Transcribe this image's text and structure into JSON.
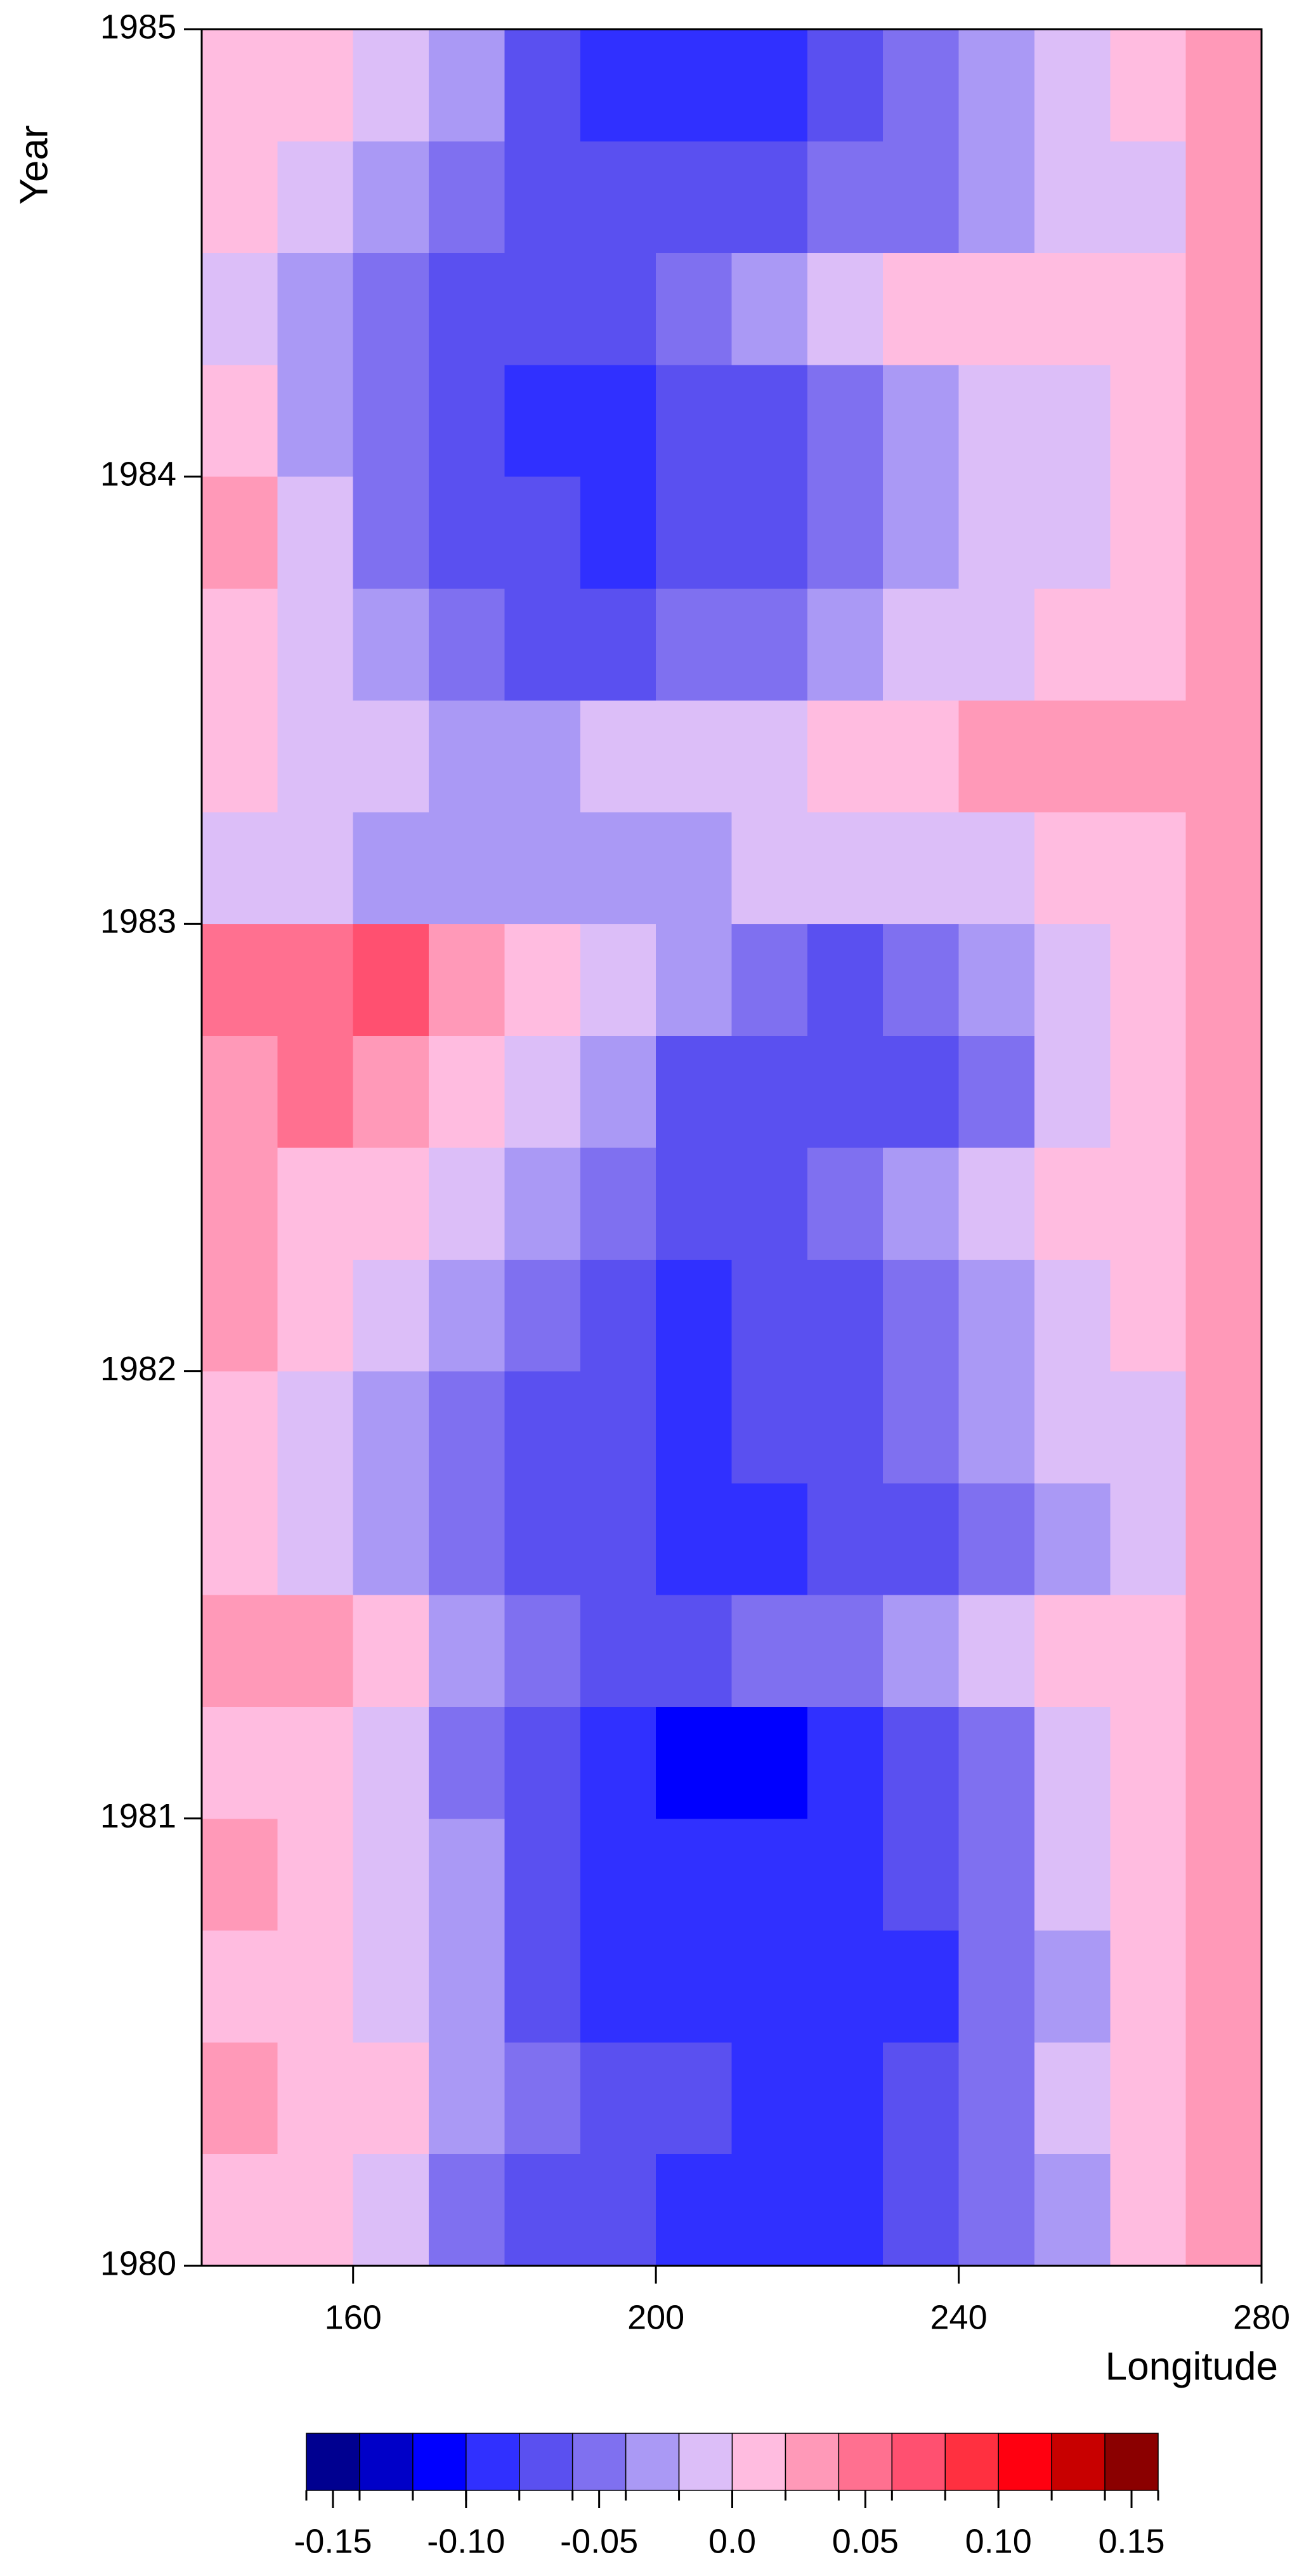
{
  "chart_data": {
    "type": "heatmap",
    "xlabel": "Longitude",
    "ylabel": "Year",
    "x": [
      145,
      155,
      165,
      175,
      185,
      195,
      205,
      215,
      225,
      235,
      245,
      255,
      265,
      275
    ],
    "y": [
      1980.125,
      1980.375,
      1980.625,
      1980.875,
      1981.125,
      1981.375,
      1981.625,
      1981.875,
      1982.125,
      1982.375,
      1982.625,
      1982.875,
      1983.125,
      1983.375,
      1983.625,
      1983.875,
      1984.125,
      1984.375,
      1984.625,
      1984.875
    ],
    "values": [
      [
        0.01,
        0.01,
        -0.02,
        -0.05,
        -0.07,
        -0.08,
        -0.09,
        -0.1,
        -0.09,
        -0.08,
        -0.06,
        -0.03,
        0.0,
        0.03
      ],
      [
        0.02,
        0.01,
        0.0,
        -0.03,
        -0.05,
        -0.07,
        -0.08,
        -0.09,
        -0.09,
        -0.08,
        -0.06,
        -0.02,
        0.01,
        0.03
      ],
      [
        0.01,
        0.0,
        -0.02,
        -0.04,
        -0.07,
        -0.09,
        -0.1,
        -0.1,
        -0.1,
        -0.09,
        -0.06,
        -0.03,
        0.0,
        0.03
      ],
      [
        0.02,
        0.01,
        -0.01,
        -0.04,
        -0.07,
        -0.09,
        -0.1,
        -0.1,
        -0.09,
        -0.07,
        -0.05,
        -0.02,
        0.0,
        0.03
      ],
      [
        0.01,
        0.0,
        -0.02,
        -0.05,
        -0.08,
        -0.1,
        -0.11,
        -0.11,
        -0.1,
        -0.08,
        -0.05,
        -0.02,
        0.0,
        0.02
      ],
      [
        0.02,
        0.03,
        0.0,
        -0.03,
        -0.05,
        -0.07,
        -0.07,
        -0.06,
        -0.05,
        -0.04,
        -0.02,
        0.0,
        0.01,
        0.03
      ],
      [
        0.0,
        -0.01,
        -0.03,
        -0.05,
        -0.07,
        -0.08,
        -0.09,
        -0.09,
        -0.08,
        -0.07,
        -0.05,
        -0.03,
        -0.01,
        0.02
      ],
      [
        0.01,
        -0.01,
        -0.03,
        -0.05,
        -0.07,
        -0.08,
        -0.09,
        -0.08,
        -0.07,
        -0.06,
        -0.04,
        -0.02,
        -0.01,
        0.03
      ],
      [
        0.02,
        0.0,
        -0.02,
        -0.04,
        -0.06,
        -0.08,
        -0.09,
        -0.08,
        -0.07,
        -0.05,
        -0.03,
        -0.01,
        0.0,
        0.02
      ],
      [
        0.03,
        0.01,
        0.0,
        -0.02,
        -0.04,
        -0.06,
        -0.07,
        -0.07,
        -0.06,
        -0.04,
        -0.02,
        0.0,
        0.0,
        0.02
      ],
      [
        0.03,
        0.04,
        0.02,
        0.0,
        -0.02,
        -0.04,
        -0.07,
        -0.08,
        -0.08,
        -0.07,
        -0.05,
        -0.02,
        0.0,
        0.02
      ],
      [
        0.05,
        0.04,
        0.06,
        0.03,
        0.01,
        -0.01,
        -0.03,
        -0.05,
        -0.07,
        -0.06,
        -0.04,
        -0.02,
        0.0,
        0.02
      ],
      [
        -0.01,
        -0.02,
        -0.03,
        -0.04,
        -0.04,
        -0.04,
        -0.03,
        -0.02,
        -0.02,
        -0.02,
        -0.01,
        0.0,
        0.0,
        0.02
      ],
      [
        0.0,
        -0.01,
        -0.02,
        -0.03,
        -0.03,
        -0.02,
        -0.02,
        -0.01,
        0.0,
        0.01,
        0.02,
        0.03,
        0.02,
        0.02
      ],
      [
        0.0,
        -0.02,
        -0.04,
        -0.06,
        -0.07,
        -0.07,
        -0.06,
        -0.05,
        -0.04,
        -0.02,
        -0.01,
        0.0,
        0.0,
        0.02
      ],
      [
        0.02,
        -0.02,
        -0.05,
        -0.07,
        -0.08,
        -0.09,
        -0.08,
        -0.07,
        -0.05,
        -0.03,
        -0.02,
        -0.01,
        0.0,
        0.03
      ],
      [
        0.0,
        -0.03,
        -0.06,
        -0.08,
        -0.09,
        -0.09,
        -0.08,
        -0.07,
        -0.05,
        -0.03,
        -0.02,
        -0.01,
        0.0,
        0.02
      ],
      [
        -0.01,
        -0.03,
        -0.05,
        -0.07,
        -0.08,
        -0.07,
        -0.05,
        -0.03,
        -0.01,
        0.0,
        0.01,
        0.01,
        0.0,
        0.02
      ],
      [
        0.0,
        -0.01,
        -0.03,
        -0.05,
        -0.07,
        -0.08,
        -0.08,
        -0.07,
        -0.06,
        -0.05,
        -0.03,
        -0.02,
        -0.01,
        0.02
      ],
      [
        0.01,
        0.0,
        -0.02,
        -0.04,
        -0.07,
        -0.09,
        -0.1,
        -0.09,
        -0.08,
        -0.06,
        -0.04,
        -0.02,
        0.0,
        0.03
      ]
    ],
    "xlim": [
      140,
      280
    ],
    "xticks": [
      160,
      200,
      240,
      280
    ],
    "ylim": [
      1980,
      1985
    ],
    "yticks": [
      1980,
      1981,
      1982,
      1983,
      1984,
      1985
    ],
    "colorbar": {
      "levels": [
        -0.16,
        -0.14,
        -0.12,
        -0.1,
        -0.08,
        -0.06,
        -0.04,
        -0.02,
        0,
        0.02,
        0.04,
        0.06,
        0.08,
        0.1,
        0.12,
        0.14,
        0.16
      ],
      "colors": [
        "#000090",
        "#0000c8",
        "#0000ff",
        "#3030ff",
        "#5a50f0",
        "#7f70f0",
        "#aa99f5",
        "#dcbef8",
        "#ffbce0",
        "#ff99b8",
        "#ff7090",
        "#ff5070",
        "#ff3040",
        "#ff0010",
        "#c80000",
        "#8b0000"
      ],
      "ticks": [
        -0.15,
        {
          "value": -0.1,
          "label": "-0.10"
        },
        -0.05,
        {
          "value": 0,
          "label": "0.0"
        },
        0.05,
        {
          "value": 0.1,
          "label": "0.10"
        },
        0.15
      ]
    }
  }
}
